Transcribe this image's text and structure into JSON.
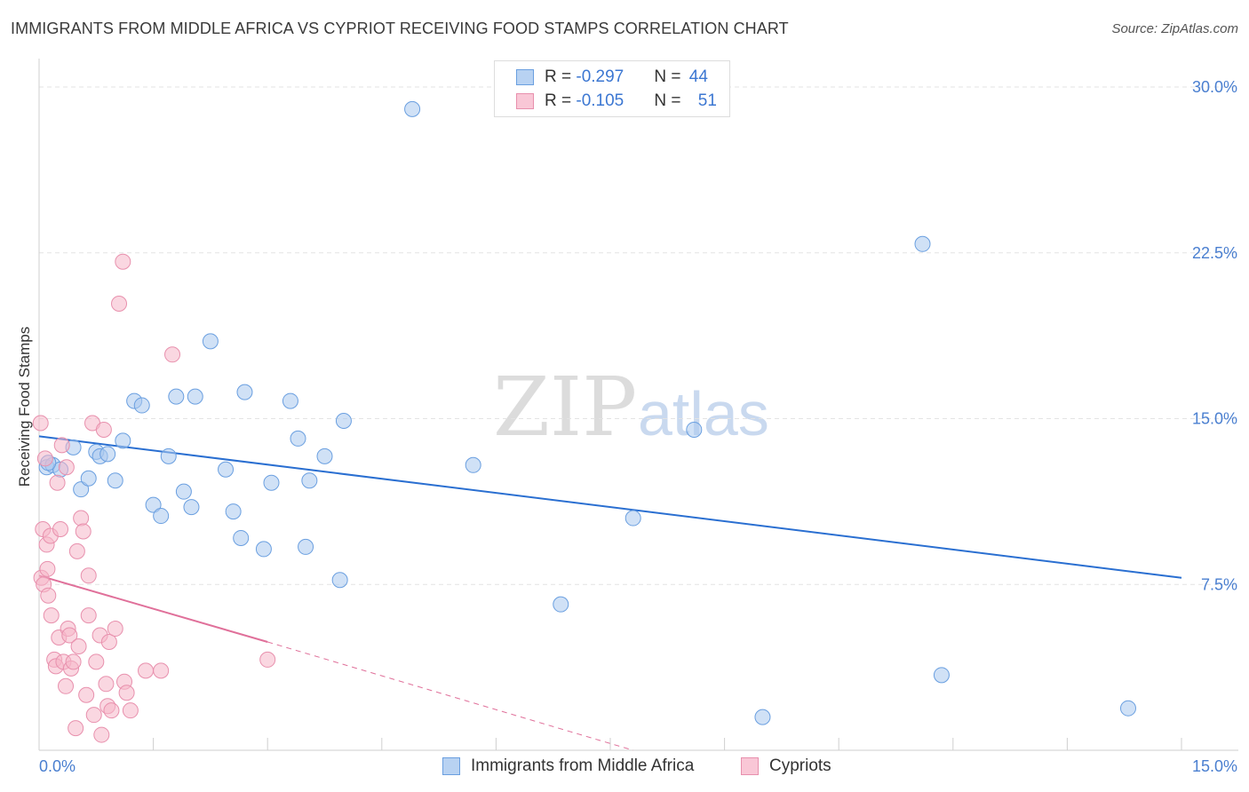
{
  "header": {
    "title": "IMMIGRANTS FROM MIDDLE AFRICA VS CYPRIOT RECEIVING FOOD STAMPS CORRELATION CHART",
    "source": "Source: ZipAtlas.com"
  },
  "watermark": {
    "zip": "ZIP",
    "atlas": "atlas"
  },
  "colors": {
    "blue_fill": "#a9c8ef",
    "blue_stroke": "#6a9fe0",
    "blue_line": "#2a6fd1",
    "pink_fill": "#f5b6c9",
    "pink_stroke": "#e890ad",
    "pink_line": "#e0709a",
    "tick_label": "#4a7fd0",
    "grid": "#e3e3e3"
  },
  "legend": {
    "rows": [
      {
        "r_label": "R = ",
        "r_value": "-0.297",
        "n_label": "N = ",
        "n_value": "44"
      },
      {
        "r_label": "R = ",
        "r_value": "-0.105",
        "n_label": "N = ",
        "n_value": "51"
      }
    ]
  },
  "bottom_legend": [
    "Immigrants from Middle Africa",
    "Cypriots"
  ],
  "chart_data": {
    "type": "scatter",
    "title": "IMMIGRANTS FROM MIDDLE AFRICA VS CYPRIOT RECEIVING FOOD STAMPS CORRELATION CHART",
    "xlabel": "",
    "ylabel": "Receiving Food Stamps",
    "xlim": [
      0,
      15
    ],
    "ylim": [
      0,
      30
    ],
    "x_tick_labels": [
      {
        "value": 0,
        "label": "0.0%"
      },
      {
        "value": 15,
        "label": "15.0%"
      }
    ],
    "y_tick_labels": [
      {
        "value": 7.5,
        "label": "7.5%"
      },
      {
        "value": 15,
        "label": "15.0%"
      },
      {
        "value": 22.5,
        "label": "22.5%"
      },
      {
        "value": 30,
        "label": "30.0%"
      }
    ],
    "grid": true,
    "series": [
      {
        "name": "Immigrants from Middle Africa",
        "color": "blue",
        "r": -0.297,
        "n": 44,
        "trend": {
          "x": [
            0,
            15
          ],
          "y": [
            14.2,
            7.8
          ]
        },
        "points": [
          [
            0.1,
            12.8
          ],
          [
            0.18,
            12.9
          ],
          [
            0.28,
            12.7
          ],
          [
            0.45,
            13.7
          ],
          [
            0.55,
            11.8
          ],
          [
            0.65,
            12.3
          ],
          [
            0.75,
            13.5
          ],
          [
            0.8,
            13.3
          ],
          [
            0.9,
            13.4
          ],
          [
            1.0,
            12.2
          ],
          [
            1.1,
            14.0
          ],
          [
            1.25,
            15.8
          ],
          [
            1.35,
            15.6
          ],
          [
            1.5,
            11.1
          ],
          [
            1.6,
            10.6
          ],
          [
            1.7,
            13.3
          ],
          [
            1.8,
            16.0
          ],
          [
            1.9,
            11.7
          ],
          [
            2.0,
            11.0
          ],
          [
            2.05,
            16.0
          ],
          [
            2.25,
            18.5
          ],
          [
            2.45,
            12.7
          ],
          [
            2.55,
            10.8
          ],
          [
            2.65,
            9.6
          ],
          [
            2.7,
            16.2
          ],
          [
            2.95,
            9.1
          ],
          [
            3.05,
            12.1
          ],
          [
            3.3,
            15.8
          ],
          [
            3.4,
            14.1
          ],
          [
            3.5,
            9.2
          ],
          [
            3.55,
            12.2
          ],
          [
            3.75,
            13.3
          ],
          [
            3.95,
            7.7
          ],
          [
            4.0,
            14.9
          ],
          [
            4.9,
            29.0
          ],
          [
            5.7,
            12.9
          ],
          [
            6.85,
            6.6
          ],
          [
            7.8,
            10.5
          ],
          [
            8.6,
            14.5
          ],
          [
            9.5,
            1.5
          ],
          [
            11.6,
            22.9
          ],
          [
            11.85,
            3.4
          ],
          [
            14.3,
            1.9
          ],
          [
            0.12,
            13.0
          ]
        ]
      },
      {
        "name": "Cypriots",
        "color": "pink",
        "r": -0.105,
        "n": 51,
        "trend": {
          "x": [
            0,
            3.0
          ],
          "y": [
            7.9,
            4.9
          ]
        },
        "trend_extension": {
          "x": [
            3.0,
            7.8
          ],
          "y": [
            4.9,
            0.0
          ]
        },
        "points": [
          [
            0.02,
            14.8
          ],
          [
            0.03,
            7.8
          ],
          [
            0.05,
            10.0
          ],
          [
            0.06,
            7.5
          ],
          [
            0.08,
            13.2
          ],
          [
            0.1,
            9.3
          ],
          [
            0.11,
            8.2
          ],
          [
            0.12,
            7.0
          ],
          [
            0.15,
            9.7
          ],
          [
            0.16,
            6.1
          ],
          [
            0.2,
            4.1
          ],
          [
            0.22,
            3.8
          ],
          [
            0.24,
            12.1
          ],
          [
            0.26,
            5.1
          ],
          [
            0.28,
            10.0
          ],
          [
            0.3,
            13.8
          ],
          [
            0.32,
            4.0
          ],
          [
            0.35,
            2.9
          ],
          [
            0.36,
            12.8
          ],
          [
            0.38,
            5.5
          ],
          [
            0.4,
            5.2
          ],
          [
            0.42,
            3.7
          ],
          [
            0.45,
            4.0
          ],
          [
            0.48,
            1.0
          ],
          [
            0.5,
            9.0
          ],
          [
            0.52,
            4.7
          ],
          [
            0.55,
            10.5
          ],
          [
            0.58,
            9.9
          ],
          [
            0.62,
            2.5
          ],
          [
            0.65,
            6.1
          ],
          [
            0.7,
            14.8
          ],
          [
            0.72,
            1.6
          ],
          [
            0.75,
            4.0
          ],
          [
            0.8,
            5.2
          ],
          [
            0.82,
            0.7
          ],
          [
            0.85,
            14.5
          ],
          [
            0.88,
            3.0
          ],
          [
            0.9,
            2.0
          ],
          [
            0.92,
            4.9
          ],
          [
            0.95,
            1.8
          ],
          [
            1.0,
            5.5
          ],
          [
            1.05,
            20.2
          ],
          [
            1.1,
            22.1
          ],
          [
            1.12,
            3.1
          ],
          [
            1.15,
            2.6
          ],
          [
            1.2,
            1.8
          ],
          [
            1.4,
            3.6
          ],
          [
            1.6,
            3.6
          ],
          [
            1.75,
            17.9
          ],
          [
            0.65,
            7.9
          ],
          [
            3.0,
            4.1
          ]
        ]
      }
    ]
  }
}
